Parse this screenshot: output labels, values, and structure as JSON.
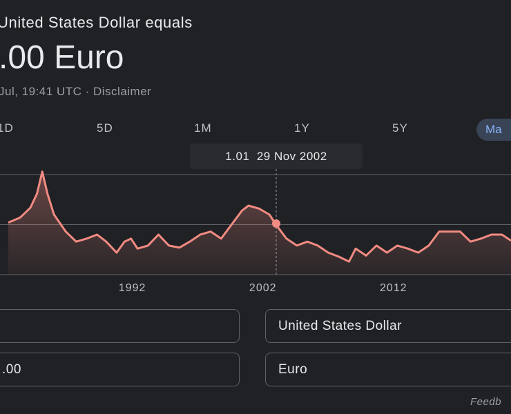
{
  "header": {
    "title": "United States Dollar equals",
    "result": ".00 Euro",
    "timestamp": "Jul, 19:41 UTC · Disclaimer"
  },
  "tabs": [
    "1D",
    "5D",
    "1M",
    "1Y",
    "5Y",
    "Ma"
  ],
  "tooltip": {
    "value": 1.01,
    "date": "29 Nov 2002"
  },
  "chart_data": {
    "type": "line",
    "x": [
      1982.5,
      1983.4,
      1984.2,
      1984.7,
      1985.1,
      1985.5,
      1986.0,
      1986.9,
      1987.7,
      1988.5,
      1989.3,
      1990.0,
      1990.8,
      1991.4,
      1991.9,
      1992.4,
      1993.2,
      1994.0,
      1994.8,
      1995.6,
      1996.4,
      1997.2,
      1998.0,
      1998.8,
      1999.6,
      2000.4,
      2000.9,
      2001.7,
      2002.5,
      2003.0,
      2003.8,
      2004.6,
      2005.4,
      2006.2,
      2007.0,
      2007.8,
      2008.6,
      2009.1,
      2009.9,
      2010.7,
      2011.5,
      2012.3,
      2013.1,
      2013.9,
      2014.7,
      2015.5,
      2016.3,
      2017.1,
      2017.9,
      2018.7,
      2019.5,
      2020.3,
      2021.0
    ],
    "series": [
      {
        "color": "#f28b82",
        "values": [
          1.02,
          1.07,
          1.17,
          1.31,
          1.53,
          1.31,
          1.1,
          0.93,
          0.83,
          0.86,
          0.9,
          0.83,
          0.72,
          0.83,
          0.86,
          0.76,
          0.79,
          0.9,
          0.79,
          0.77,
          0.83,
          0.9,
          0.93,
          0.86,
          1.0,
          1.14,
          1.19,
          1.16,
          1.1,
          1.0,
          0.86,
          0.79,
          0.83,
          0.79,
          0.72,
          0.68,
          0.63,
          0.76,
          0.69,
          0.79,
          0.72,
          0.79,
          0.76,
          0.72,
          0.79,
          0.93,
          0.93,
          0.93,
          0.83,
          0.86,
          0.9,
          0.9,
          0.84
        ]
      }
    ],
    "xlim": [
      1982.5,
      2021
    ],
    "xticks": [
      1992,
      2002,
      2012
    ],
    "ylim": [
      0.5,
      1.6
    ],
    "yticks": [
      0.5,
      1,
      1.5
    ],
    "grid": true
  },
  "converter": {
    "from_currency": "United States Dollar",
    "to_amount": ".00",
    "to_currency": "Euro"
  },
  "footer": "Feedb"
}
